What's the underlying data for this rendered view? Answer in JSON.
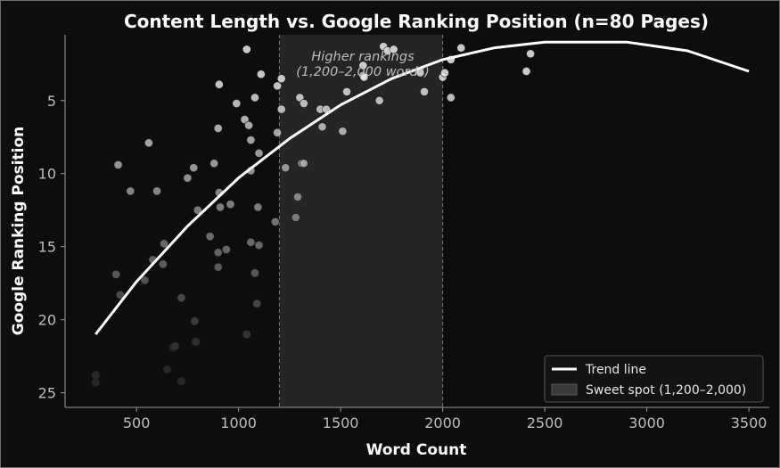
{
  "chart_data": {
    "type": "scatter",
    "title": "Content Length vs. Google Ranking Position (n=80 Pages)",
    "xlabel": "Word Count",
    "ylabel": "Google Ranking Position",
    "xlim": [
      150,
      3600
    ],
    "ylim": [
      26,
      0.5
    ],
    "y_inverted": true,
    "xticks": [
      500,
      1000,
      1500,
      2000,
      2500,
      3000,
      3500
    ],
    "yticks": [
      5,
      10,
      15,
      20,
      25
    ],
    "grid": false,
    "legend_position": "bottom-right",
    "sweet_spot": {
      "x0": 1200,
      "x1": 2000,
      "label_line1": "Higher rankings",
      "label_line2": "(1,200–2,000 words)"
    },
    "legend": [
      {
        "label": "Trend line",
        "kind": "line",
        "color": "#ffffff"
      },
      {
        "label": "Sweet spot (1,200–2,000)",
        "kind": "patch",
        "color": "#3a3a3a"
      }
    ],
    "trend_line": {
      "name": "Trend line",
      "x": [
        300,
        500,
        750,
        1000,
        1250,
        1500,
        1750,
        2000,
        2250,
        2500,
        2900,
        3200,
        3500
      ],
      "y": [
        21.0,
        17.4,
        13.6,
        10.3,
        7.6,
        5.3,
        3.5,
        2.2,
        1.4,
        1.0,
        1.0,
        1.6,
        3.0
      ]
    },
    "points": [
      {
        "x": 300,
        "y": 23.8
      },
      {
        "x": 300,
        "y": 24.3
      },
      {
        "x": 400,
        "y": 16.9
      },
      {
        "x": 410,
        "y": 9.4
      },
      {
        "x": 420,
        "y": 18.3
      },
      {
        "x": 470,
        "y": 11.2
      },
      {
        "x": 540,
        "y": 17.3
      },
      {
        "x": 560,
        "y": 7.9
      },
      {
        "x": 580,
        "y": 15.9
      },
      {
        "x": 600,
        "y": 11.2
      },
      {
        "x": 630,
        "y": 16.2
      },
      {
        "x": 635,
        "y": 14.8
      },
      {
        "x": 650,
        "y": 23.4
      },
      {
        "x": 680,
        "y": 21.9
      },
      {
        "x": 690,
        "y": 21.8
      },
      {
        "x": 720,
        "y": 18.5
      },
      {
        "x": 720,
        "y": 24.2
      },
      {
        "x": 750,
        "y": 10.3
      },
      {
        "x": 780,
        "y": 9.6
      },
      {
        "x": 785,
        "y": 20.1
      },
      {
        "x": 790,
        "y": 21.5
      },
      {
        "x": 800,
        "y": 12.5
      },
      {
        "x": 860,
        "y": 14.3
      },
      {
        "x": 880,
        "y": 9.3
      },
      {
        "x": 900,
        "y": 6.9
      },
      {
        "x": 900,
        "y": 15.4
      },
      {
        "x": 900,
        "y": 16.4
      },
      {
        "x": 905,
        "y": 3.9
      },
      {
        "x": 905,
        "y": 11.3
      },
      {
        "x": 910,
        "y": 12.3
      },
      {
        "x": 940,
        "y": 15.2
      },
      {
        "x": 960,
        "y": 12.1
      },
      {
        "x": 990,
        "y": 5.2
      },
      {
        "x": 1030,
        "y": 6.3
      },
      {
        "x": 1040,
        "y": 1.5
      },
      {
        "x": 1040,
        "y": 21.0
      },
      {
        "x": 1050,
        "y": 6.7
      },
      {
        "x": 1060,
        "y": 7.7
      },
      {
        "x": 1060,
        "y": 9.8
      },
      {
        "x": 1060,
        "y": 14.7
      },
      {
        "x": 1080,
        "y": 4.8
      },
      {
        "x": 1080,
        "y": 16.8
      },
      {
        "x": 1090,
        "y": 18.9
      },
      {
        "x": 1095,
        "y": 12.3
      },
      {
        "x": 1100,
        "y": 8.6
      },
      {
        "x": 1100,
        "y": 14.9
      },
      {
        "x": 1110,
        "y": 3.2
      },
      {
        "x": 1180,
        "y": 13.3
      },
      {
        "x": 1190,
        "y": 7.2
      },
      {
        "x": 1190,
        "y": 4.0
      },
      {
        "x": 1210,
        "y": 3.5
      },
      {
        "x": 1210,
        "y": 5.6
      },
      {
        "x": 1230,
        "y": 9.6
      },
      {
        "x": 1280,
        "y": 13.0
      },
      {
        "x": 1290,
        "y": 11.6
      },
      {
        "x": 1300,
        "y": 4.8
      },
      {
        "x": 1310,
        "y": 9.3
      },
      {
        "x": 1320,
        "y": 9.3
      },
      {
        "x": 1320,
        "y": 5.2
      },
      {
        "x": 1400,
        "y": 5.6
      },
      {
        "x": 1410,
        "y": 6.8
      },
      {
        "x": 1430,
        "y": 5.6
      },
      {
        "x": 1510,
        "y": 7.1
      },
      {
        "x": 1530,
        "y": 4.4
      },
      {
        "x": 1610,
        "y": 2.6
      },
      {
        "x": 1610,
        "y": 3.3
      },
      {
        "x": 1615,
        "y": 3.4
      },
      {
        "x": 1690,
        "y": 5.0
      },
      {
        "x": 1710,
        "y": 1.3
      },
      {
        "x": 1730,
        "y": 1.6
      },
      {
        "x": 1760,
        "y": 1.5
      },
      {
        "x": 1890,
        "y": 3.1
      },
      {
        "x": 1910,
        "y": 4.4
      },
      {
        "x": 2000,
        "y": 3.4
      },
      {
        "x": 2010,
        "y": 3.1
      },
      {
        "x": 2040,
        "y": 2.2
      },
      {
        "x": 2040,
        "y": 4.8
      },
      {
        "x": 2090,
        "y": 1.4
      },
      {
        "x": 2410,
        "y": 3.0
      },
      {
        "x": 2430,
        "y": 1.8
      }
    ]
  }
}
